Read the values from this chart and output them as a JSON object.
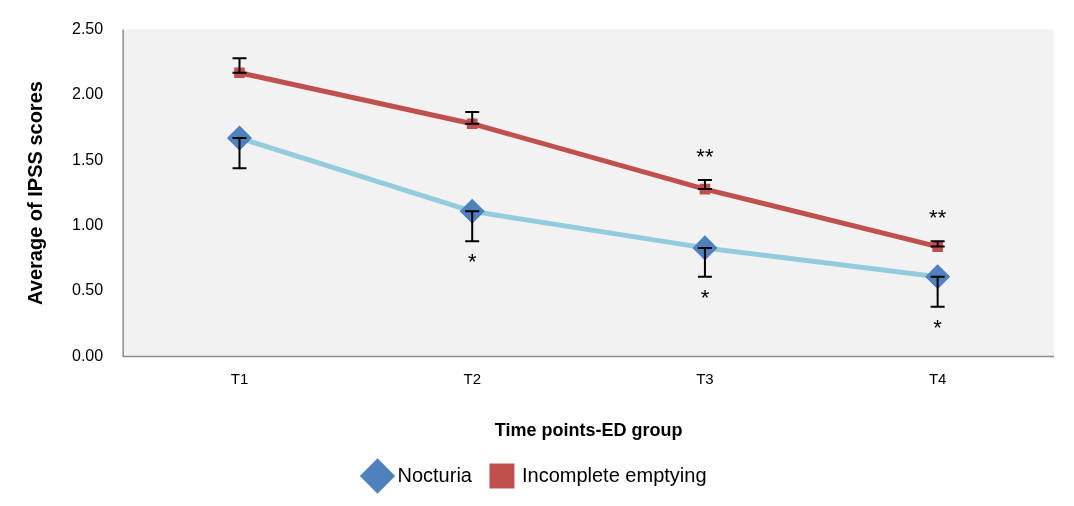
{
  "chart_data": {
    "type": "line",
    "xlabel": "Time points-ED group",
    "ylabel": "Average of IPSS scores",
    "categories": [
      "T1",
      "T2",
      "T3",
      "T4"
    ],
    "series": [
      {
        "name": "Nocturia",
        "color": "#93cddd",
        "marker": "diamond",
        "values": [
          1.67,
          1.11,
          0.83,
          0.61
        ],
        "errors": [
          [
            1.44,
            1.67
          ],
          [
            0.88,
            1.11
          ],
          [
            0.61,
            0.83
          ],
          [
            0.38,
            0.61
          ]
        ]
      },
      {
        "name": "Incomplete emptying",
        "color": "#c0504d",
        "marker": "square",
        "values": [
          2.17,
          1.78,
          1.28,
          0.84
        ],
        "errors": [
          [
            2.17,
            2.28
          ],
          [
            1.78,
            1.87
          ],
          [
            1.28,
            1.35
          ],
          [
            0.84,
            0.88
          ]
        ]
      }
    ],
    "ylim": [
      0,
      2.5
    ],
    "yticks": [
      {
        "value": 0,
        "label": "0.00"
      },
      {
        "value": 0.5,
        "label": "0.50"
      },
      {
        "value": 1,
        "label": "1.00"
      },
      {
        "value": 1.5,
        "label": "1.50"
      },
      {
        "value": 2,
        "label": "2.00"
      },
      {
        "value": 2.5,
        "label": "2.50"
      }
    ],
    "grid": false,
    "legend": "bottom",
    "annotations": [
      "*",
      "*",
      "*",
      "**",
      "**"
    ]
  }
}
